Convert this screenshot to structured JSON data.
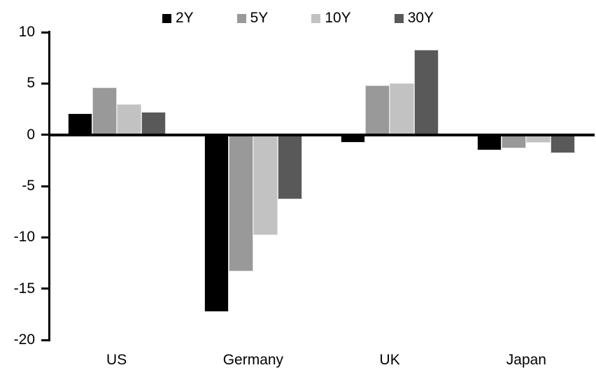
{
  "chart_data": {
    "type": "bar",
    "title": "",
    "xlabel": "",
    "ylabel": "",
    "categories": [
      "US",
      "Germany",
      "UK",
      "Japan"
    ],
    "series": [
      {
        "name": "2Y",
        "color": "#000000",
        "values": [
          2.1,
          -17.3,
          -0.8,
          -1.5
        ]
      },
      {
        "name": "5Y",
        "color": "#999999",
        "values": [
          4.6,
          -13.3,
          4.8,
          -1.3
        ]
      },
      {
        "name": "10Y",
        "color": "#c2c2c2",
        "values": [
          3.0,
          -9.8,
          5.0,
          -0.8
        ]
      },
      {
        "name": "30Y",
        "color": "#595959",
        "values": [
          2.2,
          -6.3,
          8.3,
          -1.8
        ]
      }
    ],
    "yticks": [
      10,
      5,
      0,
      -5,
      -10,
      -15,
      -20
    ],
    "ylim": [
      -20,
      10
    ],
    "grid": false,
    "legend_position": "top",
    "axis_color": "#000000",
    "background_color": "#ffffff"
  }
}
